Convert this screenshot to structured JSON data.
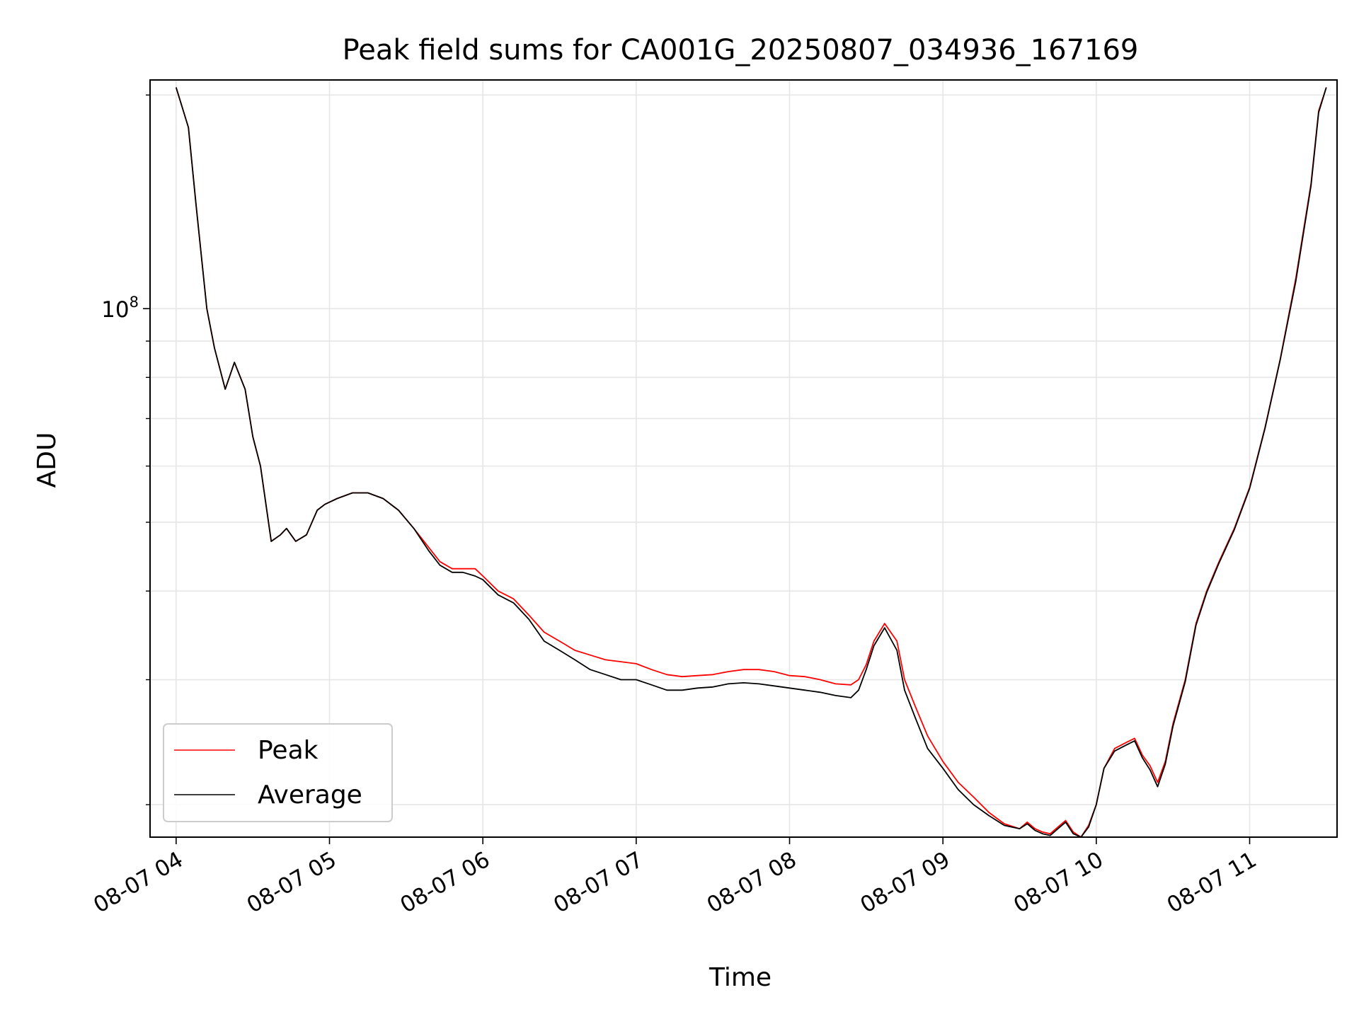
{
  "chart_data": {
    "type": "line",
    "title": "Peak field sums for CA001G_20250807_034936_167169",
    "xlabel": "Time",
    "ylabel": "ADU",
    "y_scale": "log",
    "grid": true,
    "legend_position": "lower-left",
    "x_tick_labels": [
      "08-07 04",
      "08-07 05",
      "08-07 06",
      "08-07 07",
      "08-07 08",
      "08-07 09",
      "08-07 10",
      "08-07 11"
    ],
    "x_ticks_hours": [
      4,
      5,
      6,
      7,
      8,
      9,
      10,
      11
    ],
    "xlim_hours": [
      3.83,
      11.57
    ],
    "y_tick_major_label": "10",
    "y_tick_major_exponent": "8",
    "y_tick_major_value": 100000000,
    "ylim": [
      18000000,
      210000000
    ],
    "y_minor_ticks": [
      20000000,
      30000000,
      40000000,
      50000000,
      60000000,
      70000000,
      80000000,
      90000000,
      200000000
    ],
    "series": [
      {
        "name": "Peak",
        "color": "#ff0000",
        "x_hours": [
          4.0,
          4.08,
          4.13,
          4.2,
          4.25,
          4.32,
          4.38,
          4.45,
          4.5,
          4.55,
          4.62,
          4.68,
          4.72,
          4.78,
          4.85,
          4.92,
          4.97,
          5.05,
          5.15,
          5.25,
          5.35,
          5.45,
          5.55,
          5.65,
          5.72,
          5.8,
          5.87,
          5.95,
          6.0,
          6.1,
          6.2,
          6.3,
          6.4,
          6.5,
          6.6,
          6.7,
          6.8,
          6.9,
          7.0,
          7.1,
          7.2,
          7.3,
          7.4,
          7.5,
          7.6,
          7.7,
          7.8,
          7.9,
          8.0,
          8.1,
          8.2,
          8.3,
          8.4,
          8.45,
          8.5,
          8.55,
          8.62,
          8.7,
          8.75,
          8.82,
          8.9,
          9.0,
          9.1,
          9.2,
          9.3,
          9.4,
          9.5,
          9.55,
          9.6,
          9.65,
          9.7,
          9.75,
          9.8,
          9.85,
          9.9,
          9.95,
          10.0,
          10.05,
          10.12,
          10.2,
          10.25,
          10.3,
          10.35,
          10.4,
          10.45,
          10.5,
          10.58,
          10.65,
          10.72,
          10.8,
          10.9,
          11.0,
          11.1,
          11.2,
          11.3,
          11.4,
          11.45,
          11.5
        ],
        "values": [
          205000000,
          180000000,
          140000000,
          100000000,
          88000000,
          77000000,
          84000000,
          77000000,
          66000000,
          60000000,
          47000000,
          48000000,
          49000000,
          47000000,
          48000000,
          52000000,
          53000000,
          54000000,
          55000000,
          55000000,
          54000000,
          52000000,
          49000000,
          46000000,
          44000000,
          43000000,
          43000000,
          43000000,
          42000000,
          40000000,
          39000000,
          37000000,
          35000000,
          34000000,
          33000000,
          32500000,
          32000000,
          31800000,
          31600000,
          31000000,
          30500000,
          30300000,
          30400000,
          30500000,
          30800000,
          31000000,
          31000000,
          30800000,
          30400000,
          30300000,
          30000000,
          29600000,
          29500000,
          30000000,
          31500000,
          34000000,
          36000000,
          34000000,
          30000000,
          27500000,
          25000000,
          23000000,
          21500000,
          20500000,
          19500000,
          18800000,
          18500000,
          18900000,
          18500000,
          18300000,
          18200000,
          18600000,
          19000000,
          18300000,
          17800000,
          18700000,
          20000000,
          22500000,
          24000000,
          24500000,
          24800000,
          23500000,
          22700000,
          21500000,
          23000000,
          26000000,
          30000000,
          36000000,
          40000000,
          44000000,
          49000000,
          56000000,
          68000000,
          85000000,
          110000000,
          150000000,
          190000000,
          205000000
        ]
      },
      {
        "name": "Average",
        "color": "#000000",
        "x_hours": [
          4.0,
          4.08,
          4.13,
          4.2,
          4.25,
          4.32,
          4.38,
          4.45,
          4.5,
          4.55,
          4.62,
          4.68,
          4.72,
          4.78,
          4.85,
          4.92,
          4.97,
          5.05,
          5.15,
          5.25,
          5.35,
          5.45,
          5.55,
          5.65,
          5.72,
          5.8,
          5.87,
          5.95,
          6.0,
          6.1,
          6.2,
          6.3,
          6.4,
          6.5,
          6.6,
          6.7,
          6.8,
          6.9,
          7.0,
          7.1,
          7.2,
          7.3,
          7.4,
          7.5,
          7.6,
          7.7,
          7.8,
          7.9,
          8.0,
          8.1,
          8.2,
          8.3,
          8.4,
          8.45,
          8.5,
          8.55,
          8.62,
          8.7,
          8.75,
          8.82,
          8.9,
          9.0,
          9.1,
          9.2,
          9.3,
          9.4,
          9.5,
          9.55,
          9.6,
          9.65,
          9.7,
          9.75,
          9.8,
          9.85,
          9.9,
          9.95,
          10.0,
          10.05,
          10.12,
          10.2,
          10.25,
          10.3,
          10.35,
          10.4,
          10.45,
          10.5,
          10.58,
          10.65,
          10.72,
          10.8,
          10.9,
          11.0,
          11.1,
          11.2,
          11.3,
          11.4,
          11.45,
          11.5
        ],
        "values": [
          205000000,
          180000000,
          140000000,
          100000000,
          88000000,
          77000000,
          84000000,
          77000000,
          66000000,
          60000000,
          47000000,
          48000000,
          49000000,
          47000000,
          48000000,
          52000000,
          53000000,
          54000000,
          55000000,
          55000000,
          54000000,
          52000000,
          49000000,
          45500000,
          43500000,
          42500000,
          42500000,
          42000000,
          41500000,
          39500000,
          38500000,
          36500000,
          34000000,
          33000000,
          32000000,
          31000000,
          30500000,
          30000000,
          30000000,
          29500000,
          29000000,
          29000000,
          29200000,
          29300000,
          29600000,
          29700000,
          29600000,
          29400000,
          29200000,
          29000000,
          28800000,
          28500000,
          28300000,
          29000000,
          31000000,
          33500000,
          35500000,
          33000000,
          29000000,
          26500000,
          24000000,
          22500000,
          21000000,
          20000000,
          19300000,
          18700000,
          18500000,
          18800000,
          18400000,
          18200000,
          18100000,
          18500000,
          18900000,
          18200000,
          17800000,
          18600000,
          20000000,
          22500000,
          23800000,
          24300000,
          24600000,
          23300000,
          22400000,
          21200000,
          22800000,
          25800000,
          29800000,
          35800000,
          39800000,
          43800000,
          48800000,
          55800000,
          67800000,
          84800000,
          109000000,
          149000000,
          189000000,
          205000000
        ]
      }
    ]
  }
}
